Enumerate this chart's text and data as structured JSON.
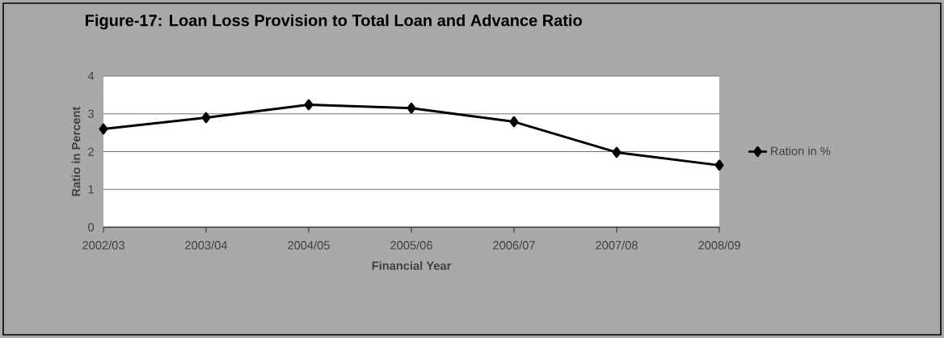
{
  "chart_data": {
    "type": "line",
    "title": "Figure-17:  Loan Loss Provision to Total Loan and Advance Ratio",
    "xlabel": "Financial Year",
    "ylabel": "Ratio in Percent",
    "categories": [
      "2002/03",
      "2003/04",
      "2004/05",
      "2005/06",
      "2006/07",
      "2007/08",
      "2008/09"
    ],
    "series": [
      {
        "name": "Ration in %",
        "color": "#000000",
        "values": [
          2.6,
          2.9,
          3.24,
          3.15,
          2.79,
          1.98,
          1.64
        ]
      }
    ],
    "ylim": [
      0,
      4
    ],
    "yticks": [
      0,
      1,
      2,
      3,
      4
    ],
    "grid": "y",
    "legend": "right",
    "marker": "diamond",
    "line_style": "solid"
  }
}
